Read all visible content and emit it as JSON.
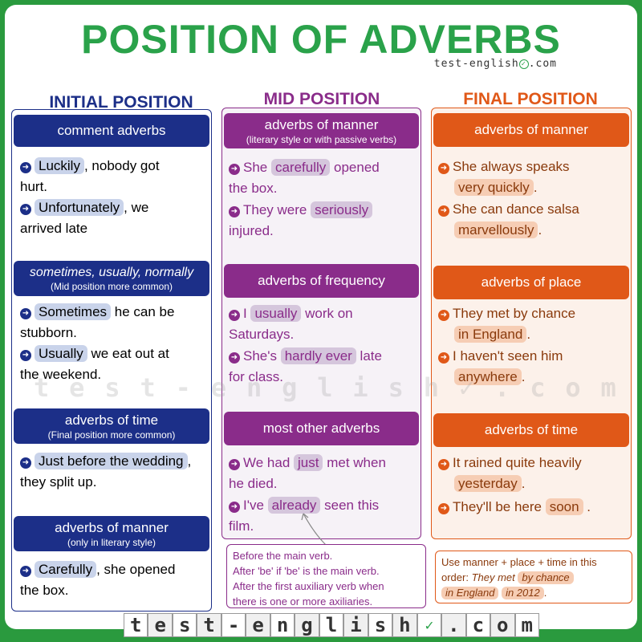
{
  "title": "POSITION OF ADVERBS",
  "brand": "test-english",
  "brand_suffix": ".com",
  "columns": {
    "initial": {
      "heading": "INITIAL POSITION",
      "color": "#1c2f88",
      "band1": {
        "main": "comment adverbs"
      },
      "ex1": {
        "adverb": "Luckily",
        "after": ", nobody got",
        "line2": "hurt."
      },
      "ex2": {
        "adverb": "Unfortunately",
        "after": ", we",
        "line2": "arrived late"
      },
      "band2": {
        "main": "sometimes, usually, normally",
        "sub": "(Mid position more common)"
      },
      "ex3": {
        "adverb": "Sometimes",
        "after": " he can be",
        "line2": "stubborn."
      },
      "ex4": {
        "adverb": "Usually",
        "after": " we eat out at",
        "line2": "the weekend."
      },
      "band3": {
        "main": "adverbs of time",
        "sub": "(Final position more common)"
      },
      "ex5": {
        "adverb": "Just before the wedding",
        "after": ",",
        "line2": "they split up."
      },
      "band4": {
        "main": "adverbs of manner",
        "sub": "(only in literary style)"
      },
      "ex6": {
        "adverb": "Carefully",
        "after": ", she opened",
        "line2": "the box."
      }
    },
    "mid": {
      "heading": "MID POSITION",
      "color": "#8a2c8a",
      "band1": {
        "main": "adverbs of manner",
        "sub": "(literary style or with passive verbs)"
      },
      "ex1": {
        "before": "She ",
        "adverb": "carefully",
        "after": " opened",
        "line2": "the box."
      },
      "ex2": {
        "before": "They were ",
        "adverb": "seriously",
        "after": "",
        "line2": "injured."
      },
      "band2": {
        "main": "adverbs of frequency"
      },
      "ex3": {
        "before": "I ",
        "adverb": "usually",
        "after": " work on",
        "line2": "Saturdays."
      },
      "ex4": {
        "before": "She's ",
        "adverb": "hardly ever",
        "after": " late",
        "line2": "for class."
      },
      "band3": {
        "main": "most other adverbs"
      },
      "ex5": {
        "before": "We had ",
        "adverb": "just",
        "after": " met when",
        "line2": "he died."
      },
      "ex6": {
        "before": "I've ",
        "adverb": "already",
        "after": " seen this",
        "line2": "film."
      },
      "note": [
        "Before the main verb.",
        "After 'be' if 'be' is the main verb.",
        "After the first auxiliary verb when",
        "there is one or more axiliaries."
      ]
    },
    "final": {
      "heading": "FINAL POSITION",
      "color": "#e05818",
      "band1": {
        "main": "adverbs of manner"
      },
      "ex1": {
        "before": "She always speaks",
        "adverb": "very quickly",
        "after": "."
      },
      "ex2": {
        "before": "She can dance salsa",
        "adverb": "marvellously",
        "after": "."
      },
      "band2": {
        "main": "adverbs of place"
      },
      "ex3": {
        "before": "They met by chance",
        "adverb": "in England",
        "after": "."
      },
      "ex4": {
        "before": "I haven't seen him",
        "adverb": "anywhere",
        "after": "."
      },
      "band3": {
        "main": "adverbs of time"
      },
      "ex5": {
        "before": "It rained quite heavily",
        "adverb": "yesterday",
        "after": "."
      },
      "ex6": {
        "before": "They'll be here ",
        "adverb": "soon",
        "after": " ."
      },
      "note": {
        "line1": "Use manner + place + time in this",
        "line2_before": "order: ",
        "line2_italic": "They met",
        "hl1": "by chance",
        "hl2": "in England",
        "hl3": "in 2012",
        "end": "."
      }
    }
  },
  "watermark": [
    "t",
    "e",
    "s",
    "t",
    "-",
    "e",
    "n",
    "g",
    "l",
    "i",
    "s",
    "h",
    "✓",
    ".",
    "c",
    "o",
    "m"
  ],
  "footer_tiles": [
    "t",
    "e",
    "s",
    "t",
    "-",
    "e",
    "n",
    "g",
    "l",
    "i",
    "s",
    "h",
    "✓",
    ".",
    "c",
    "o",
    "m"
  ]
}
